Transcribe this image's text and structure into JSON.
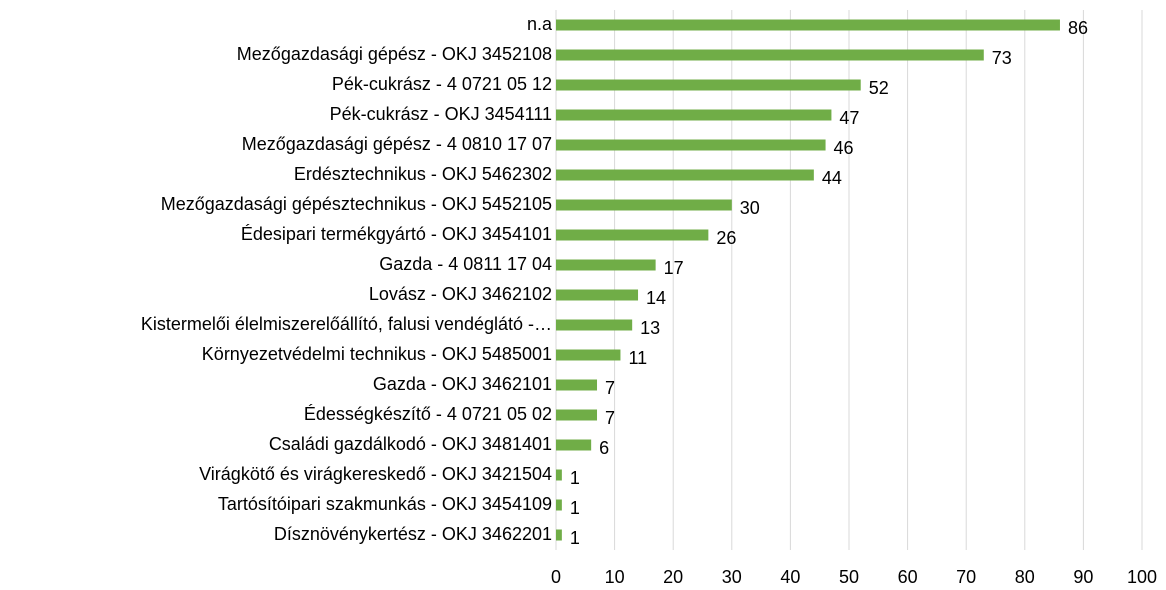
{
  "chart_data": {
    "type": "barh",
    "categories": [
      "n.a",
      "Mezőgazdasági gépész - OKJ 3452108",
      "Pék-cukrász - 4 0721 05 12",
      "Pék-cukrász - OKJ 3454111",
      "Mezőgazdasági gépész - 4 0810 17 07",
      "Erdésztechnikus - OKJ 5462302",
      "Mezőgazdasági gépésztechnikus - OKJ 5452105",
      "Édesipari termékgyártó - OKJ 3454101",
      "Gazda - 4 0811 17 04",
      "Lovász - OKJ 3462102",
      "Kistermelői élelmiszerelőállító, falusi vendéglátó -…",
      "Környezetvédelmi technikus - OKJ 5485001",
      "Gazda - OKJ 3462101",
      "Édességkészítő - 4 0721 05 02",
      "Családi gazdálkodó - OKJ 3481401",
      "Virágkötő és virágkereskedő - OKJ 3421504",
      "Tartósítóipari szakmunkás - OKJ 3454109",
      "Dísznövénykertész - OKJ 3462201"
    ],
    "values": [
      86,
      73,
      52,
      47,
      46,
      44,
      30,
      26,
      17,
      14,
      13,
      11,
      7,
      7,
      6,
      1,
      1,
      1
    ],
    "color": "#70ad47",
    "xlim": [
      0,
      100
    ],
    "xticks": [
      0,
      10,
      20,
      30,
      40,
      50,
      60,
      70,
      80,
      90,
      100
    ],
    "grid": true
  }
}
